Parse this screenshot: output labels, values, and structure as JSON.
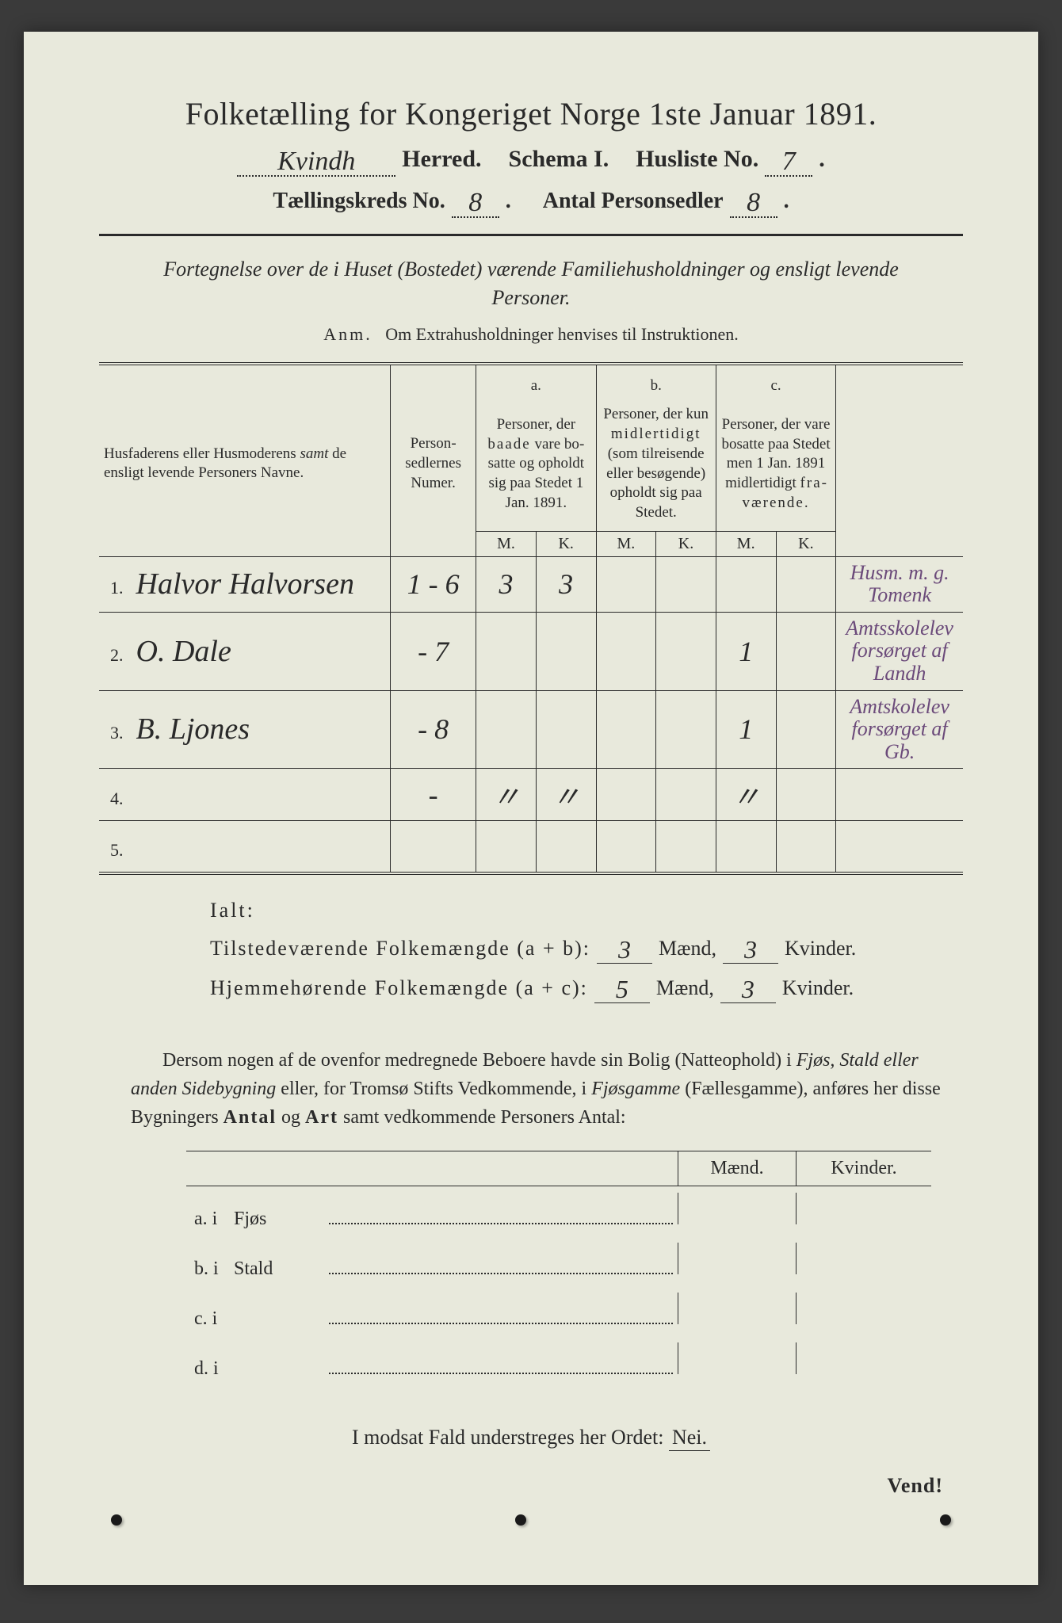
{
  "title": "Folketælling for Kongeriget Norge 1ste Januar 1891.",
  "herred_value": "Kvindh",
  "line2": {
    "herred": "Herred.",
    "schema": "Schema I.",
    "husliste": "Husliste No.",
    "husliste_no": "7"
  },
  "line3": {
    "kreds": "Tællingskreds No.",
    "kreds_no": "8",
    "antal": "Antal Personsedler",
    "antal_no": "8"
  },
  "italic_block": "Fortegnelse over de i Huset (Bostedet) værende Familiehusholdninger og ensligt levende Personer.",
  "anm": {
    "label": "Anm.",
    "text": "Om Extrahusholdninger henvises til Instruktionen."
  },
  "table": {
    "col_name": "Husfaderens eller Husmode­rens samt de ensligt levende Personers Navne.",
    "col_num": "Person­sedler­nes Numer.",
    "col_a_top": "a.",
    "col_a": "Personer, der baade vare bo­satte og opholdt sig paa Stedet 1 Jan. 1891.",
    "col_b_top": "b.",
    "col_b": "Personer, der kun midler­tidigt (som tilreisende eller besøgende) opholdt sig paa Stedet.",
    "col_c_top": "c.",
    "col_c": "Personer, der vare bosatte paa Stedet men 1 Jan. 1891 midler­tidigt fra­værende.",
    "M": "M.",
    "K": "K.",
    "rows": [
      {
        "n": "1.",
        "name": "Halvor Halvorsen",
        "num": "1 - 6",
        "aM": "3",
        "aK": "3",
        "bM": "",
        "bK": "",
        "cM": "",
        "cK": "",
        "note": "Husm. m. g. Tomenk"
      },
      {
        "n": "2.",
        "name": "O. Dale",
        "num": "- 7",
        "aM": "",
        "aK": "",
        "bM": "",
        "bK": "",
        "cM": "1",
        "cK": "",
        "note": "Amtsskolelev forsørget af Landh"
      },
      {
        "n": "3.",
        "name": "B. Ljones",
        "num": "- 8",
        "aM": "",
        "aK": "",
        "bM": "",
        "bK": "",
        "cM": "1",
        "cK": "",
        "note": "Amtskolelev forsørget af Gb."
      },
      {
        "n": "4.",
        "name": "",
        "num": "-",
        "aM": "〃",
        "aK": "〃",
        "bM": "",
        "bK": "",
        "cM": "〃",
        "cK": "",
        "note": ""
      },
      {
        "n": "5.",
        "name": "",
        "num": "",
        "aM": "",
        "aK": "",
        "bM": "",
        "bK": "",
        "cM": "",
        "cK": "",
        "note": ""
      }
    ]
  },
  "ialt": {
    "label": "Ialt:",
    "l1_a": "Tilstedeværende Folkemængde (a + b):",
    "l1_m": "3",
    "l1_k": "3",
    "l2_a": "Hjemmehørende Folkemængde (a + c):",
    "l2_m": "5",
    "l2_k": "3",
    "maend": "Mænd,",
    "kvinder": "Kvinder."
  },
  "para": "Dersom nogen af de ovenfor medregnede Beboere havde sin Bolig (Natte­ophold) i Fjøs, Stald eller anden Sidebygning eller, for Tromsø Stifts Ved­kommende, i Fjøsgamme (Fællesgamme), anføres her disse Bygningers Antal og Art samt vedkommende Personers Antal:",
  "sb": {
    "maend": "Mænd.",
    "kvinder": "Kvinder.",
    "rows": [
      {
        "lab": "a.  i",
        "typ": "Fjøs"
      },
      {
        "lab": "b.  i",
        "typ": "Stald"
      },
      {
        "lab": "c.  i",
        "typ": ""
      },
      {
        "lab": "d.  i",
        "typ": ""
      }
    ]
  },
  "nei": {
    "text": "I modsat Fald understreges her Ordet:",
    "word": "Nei."
  },
  "vend": "Vend!"
}
